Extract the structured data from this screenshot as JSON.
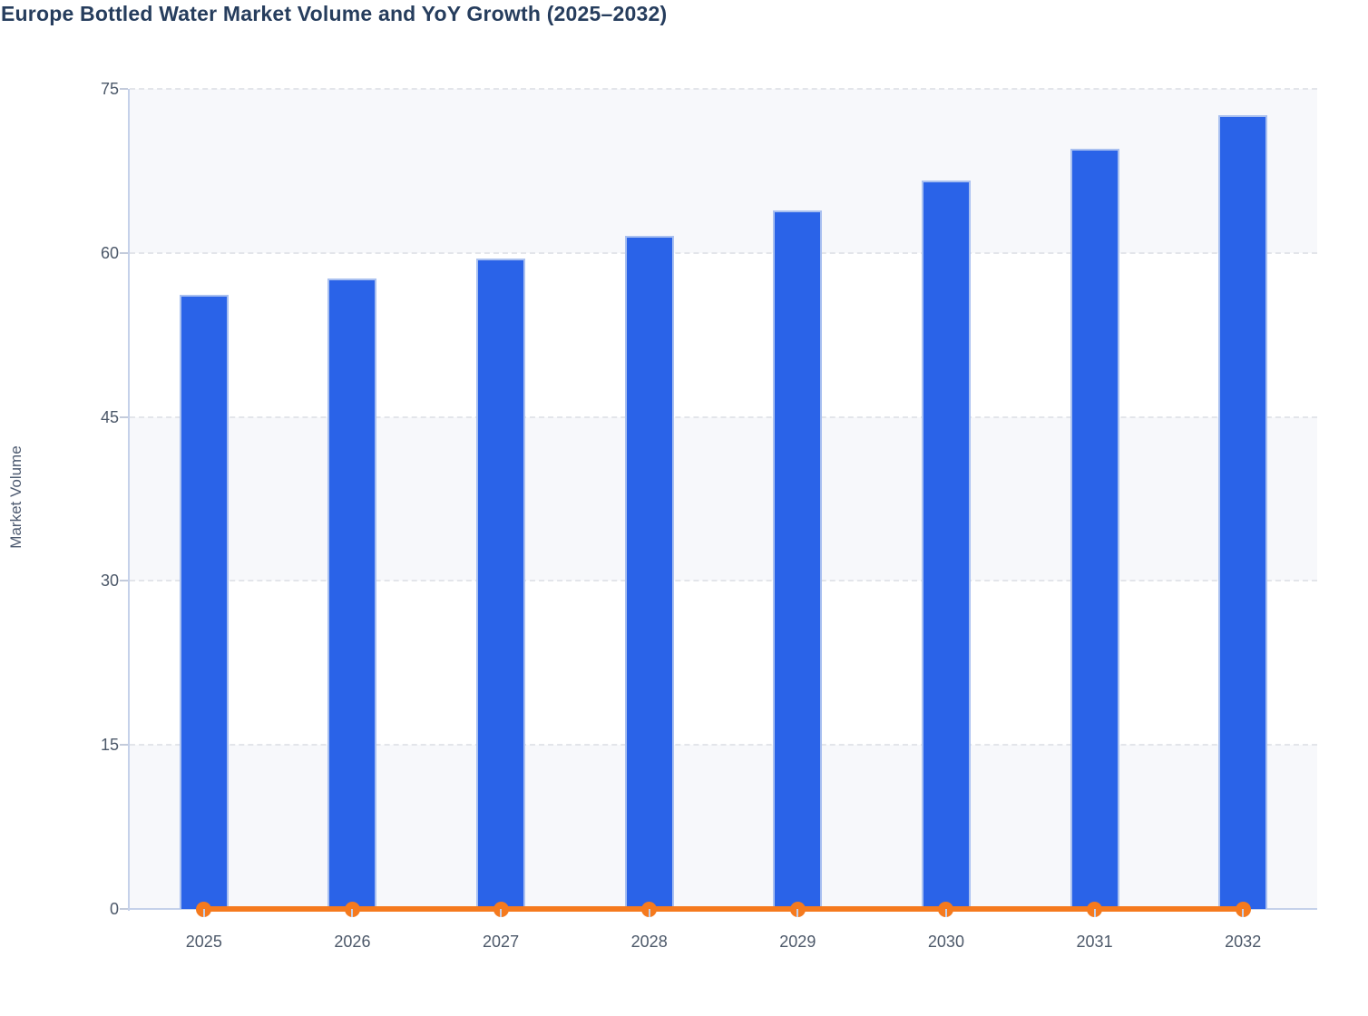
{
  "chart_data": {
    "type": "bar",
    "subtype": "combo-bar-line",
    "title": "Europe Bottled Water Market Volume and YoY Growth (2025–2032)",
    "ylabel": "Market Volume",
    "xlabel": "",
    "categories": [
      "2025",
      "2026",
      "2027",
      "2028",
      "2029",
      "2030",
      "2031",
      "2032"
    ],
    "series": [
      {
        "name": "Market Volume",
        "type": "bar",
        "values": [
          56.2,
          57.7,
          59.5,
          61.6,
          63.9,
          66.6,
          69.5,
          72.6
        ]
      },
      {
        "name": "YoY Growth",
        "type": "line",
        "values": [
          0,
          0,
          0,
          0,
          0,
          0,
          0,
          0
        ],
        "note": "line with round markers renders flat on the baseline (≈0 on the left axis)"
      }
    ],
    "ylim": [
      0,
      75
    ],
    "yticks": [
      0,
      15,
      30,
      45,
      60,
      75
    ],
    "grid": "horizontal dashed gridlines with alternating shaded bands",
    "legend_position": "none"
  },
  "colors": {
    "bar_fill": "#2a63e8",
    "bar_border": "#a9c0f0",
    "line": "#f57a1e",
    "band_fill": "#f7f8fb",
    "grid": "#e3e5ea",
    "axis_line": "#c5d1ea",
    "tick_mark": "#c3cbdb",
    "tick_text": "#4c5869",
    "axis_title_text": "#4d5a70",
    "title_text": "#263d5d",
    "background": "#ffffff"
  }
}
